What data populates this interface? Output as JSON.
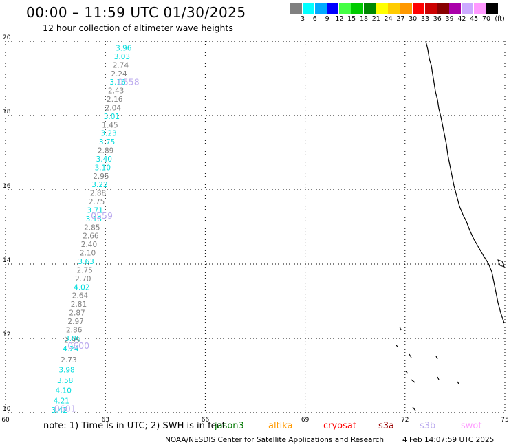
{
  "header": {
    "title": "00:00 – 11:59 UTC 01/30/2025",
    "subtitle": "12 hour collection of altimeter wave heights"
  },
  "color_scale": {
    "unit_label": "(ft)",
    "bins": [
      {
        "label": "3",
        "color": "#808080"
      },
      {
        "label": "6",
        "color": "#00ffff"
      },
      {
        "label": "9",
        "color": "#00aaff"
      },
      {
        "label": "12",
        "color": "#0000ff"
      },
      {
        "label": "15",
        "color": "#44ff44"
      },
      {
        "label": "18",
        "color": "#00cc00"
      },
      {
        "label": "21",
        "color": "#008800"
      },
      {
        "label": "24",
        "color": "#ffff00"
      },
      {
        "label": "27",
        "color": "#ffcc00"
      },
      {
        "label": "30",
        "color": "#ff9900"
      },
      {
        "label": "33",
        "color": "#ff0000"
      },
      {
        "label": "36",
        "color": "#cc0000"
      },
      {
        "label": "39",
        "color": "#880000"
      },
      {
        "label": "42",
        "color": "#aa00aa"
      },
      {
        "label": "45",
        "color": "#ccaaff"
      },
      {
        "label": "70",
        "color": "#ff99ff"
      },
      {
        "label": "",
        "color": "#000000"
      }
    ]
  },
  "axes": {
    "x_ticks": [
      "60",
      "63",
      "66",
      "69",
      "72",
      "75"
    ],
    "y_ticks": [
      "10",
      "12",
      "14",
      "16",
      "18",
      "20"
    ],
    "x_range": [
      60,
      75
    ],
    "y_range": [
      10,
      20
    ]
  },
  "track": {
    "color_low": "#808080",
    "color_high": "#00dddd",
    "passes": [
      {
        "label": "0558",
        "lat": 18.9,
        "lon": 63.2
      },
      {
        "label": "0559",
        "lat": 15.3,
        "lon": 62.4
      },
      {
        "label": "0600",
        "lat": 11.8,
        "lon": 61.7
      },
      {
        "label": "0601",
        "lat": 10.1,
        "lon": 61.3
      }
    ],
    "pass_color": "#bbaaee",
    "points": [
      {
        "lat": 19.75,
        "lon": 63.55,
        "v": "3.96"
      },
      {
        "lat": 19.52,
        "lon": 63.5,
        "v": "3.03"
      },
      {
        "lat": 19.29,
        "lon": 63.46,
        "v": "2.74"
      },
      {
        "lat": 19.06,
        "lon": 63.41,
        "v": "2.24"
      },
      {
        "lat": 18.83,
        "lon": 63.37,
        "v": "3.16"
      },
      {
        "lat": 18.6,
        "lon": 63.32,
        "v": "2.43"
      },
      {
        "lat": 18.37,
        "lon": 63.28,
        "v": "2.16"
      },
      {
        "lat": 18.14,
        "lon": 63.23,
        "v": "2.04"
      },
      {
        "lat": 17.91,
        "lon": 63.19,
        "v": "3.01"
      },
      {
        "lat": 17.68,
        "lon": 63.14,
        "v": "1.45"
      },
      {
        "lat": 17.45,
        "lon": 63.1,
        "v": "3.23"
      },
      {
        "lat": 17.22,
        "lon": 63.05,
        "v": "3.75"
      },
      {
        "lat": 16.99,
        "lon": 63.01,
        "v": "2.89"
      },
      {
        "lat": 16.76,
        "lon": 62.96,
        "v": "3.40"
      },
      {
        "lat": 16.53,
        "lon": 62.92,
        "v": "3.10"
      },
      {
        "lat": 16.3,
        "lon": 62.87,
        "v": "2.95"
      },
      {
        "lat": 16.07,
        "lon": 62.83,
        "v": "3.22"
      },
      {
        "lat": 15.84,
        "lon": 62.78,
        "v": "2.88"
      },
      {
        "lat": 15.61,
        "lon": 62.74,
        "v": "2.75"
      },
      {
        "lat": 15.38,
        "lon": 62.69,
        "v": "3.71"
      },
      {
        "lat": 15.15,
        "lon": 62.65,
        "v": "3.18"
      },
      {
        "lat": 14.92,
        "lon": 62.6,
        "v": "2.85"
      },
      {
        "lat": 14.69,
        "lon": 62.56,
        "v": "2.66"
      },
      {
        "lat": 14.46,
        "lon": 62.51,
        "v": "2.40"
      },
      {
        "lat": 14.23,
        "lon": 62.47,
        "v": "2.10"
      },
      {
        "lat": 14.0,
        "lon": 62.42,
        "v": "3.63"
      },
      {
        "lat": 13.77,
        "lon": 62.38,
        "v": "2.75"
      },
      {
        "lat": 13.54,
        "lon": 62.33,
        "v": "2.70"
      },
      {
        "lat": 13.31,
        "lon": 62.29,
        "v": "4.02"
      },
      {
        "lat": 13.08,
        "lon": 62.24,
        "v": "2.64"
      },
      {
        "lat": 12.85,
        "lon": 62.2,
        "v": "2.81"
      },
      {
        "lat": 12.62,
        "lon": 62.15,
        "v": "2.87"
      },
      {
        "lat": 12.39,
        "lon": 62.11,
        "v": "2.97"
      },
      {
        "lat": 12.16,
        "lon": 62.06,
        "v": "2.86"
      },
      {
        "lat": 11.93,
        "lon": 62.02,
        "v": "3.86"
      },
      {
        "lat": 11.88,
        "lon": 62.0,
        "v": "2.95"
      },
      {
        "lat": 11.65,
        "lon": 61.96,
        "v": "4.24"
      },
      {
        "lat": 11.35,
        "lon": 61.9,
        "v": "2.73"
      },
      {
        "lat": 11.08,
        "lon": 61.84,
        "v": "3.98"
      },
      {
        "lat": 10.8,
        "lon": 61.79,
        "v": "3.58"
      },
      {
        "lat": 10.53,
        "lon": 61.74,
        "v": "4.10"
      },
      {
        "lat": 10.25,
        "lon": 61.68,
        "v": "4.21"
      },
      {
        "lat": 10.0,
        "lon": 61.62,
        "v": "3.42"
      }
    ]
  },
  "footer": {
    "note": "note: 1) Time is in UTC; 2) SWH is in feet",
    "satellites": [
      {
        "name": "jason3",
        "color": "#007700"
      },
      {
        "name": "altika",
        "color": "#ff9900"
      },
      {
        "name": "cryosat",
        "color": "#ff0000"
      },
      {
        "name": "s3a",
        "color": "#990000"
      },
      {
        "name": "s3b",
        "color": "#bbaaee"
      },
      {
        "name": "swot",
        "color": "#ff99ff"
      }
    ],
    "credit": "NOAA/NESDIS Center for Satellite Applications and Research",
    "timestamp": "4 Feb 14:07:59 UTC 2025"
  }
}
